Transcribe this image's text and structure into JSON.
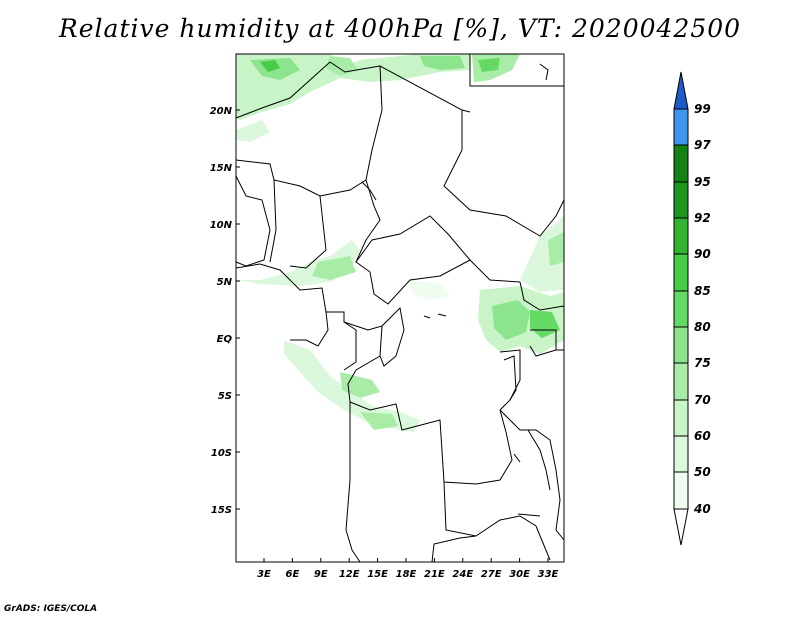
{
  "title": "Relative humidity at 400hPa [%], VT: 2020042500",
  "credit": "GrADS: IGES/COLA",
  "map": {
    "lat_labels": [
      "20N",
      "15N",
      "10N",
      "5N",
      "EQ",
      "5S",
      "10S",
      "15S"
    ],
    "lon_labels": [
      "3E",
      "6E",
      "9E",
      "12E",
      "15E",
      "18E",
      "21E",
      "24E",
      "27E",
      "30E",
      "33E"
    ]
  },
  "colorbar": {
    "levels": [
      "40",
      "50",
      "60",
      "70",
      "75",
      "80",
      "85",
      "90",
      "92",
      "95",
      "97",
      "99"
    ],
    "colors": [
      "#f0fcf0",
      "#dcf8dc",
      "#c8f4c8",
      "#a8eca8",
      "#8ce48c",
      "#64da64",
      "#46cc46",
      "#32b432",
      "#1e961e",
      "#148214",
      "#3c96f0",
      "#2878dc",
      "#1e5ac8"
    ]
  }
}
